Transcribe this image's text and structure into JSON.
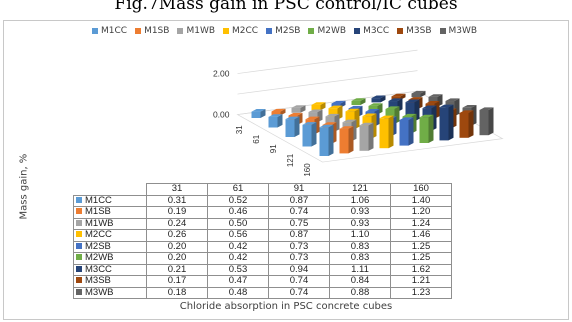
{
  "figure_title": "Fig.7Mass gain in PSC control/IC cubes",
  "chart_data": {
    "type": "bar",
    "subtype": "3d-clustered-bar-with-data-table",
    "categories": [
      "31",
      "61",
      "91",
      "121",
      "160"
    ],
    "series": [
      {
        "name": "M1CC",
        "color": "#5b9bd5",
        "values": [
          0.31,
          0.52,
          0.87,
          1.06,
          1.4
        ]
      },
      {
        "name": "M1SB",
        "color": "#ed7d31",
        "values": [
          0.19,
          0.46,
          0.74,
          0.93,
          1.2
        ]
      },
      {
        "name": "M1WB",
        "color": "#a5a5a5",
        "values": [
          0.24,
          0.5,
          0.75,
          0.93,
          1.24
        ]
      },
      {
        "name": "M2CC",
        "color": "#ffc000",
        "values": [
          0.26,
          0.56,
          0.87,
          1.1,
          1.46
        ]
      },
      {
        "name": "M2SB",
        "color": "#4472c4",
        "values": [
          0.2,
          0.42,
          0.73,
          0.83,
          1.25
        ]
      },
      {
        "name": "M2WB",
        "color": "#70ad47",
        "values": [
          0.2,
          0.42,
          0.73,
          0.83,
          1.25
        ]
      },
      {
        "name": "M3CC",
        "color": "#264478",
        "values": [
          0.21,
          0.53,
          0.94,
          1.11,
          1.62
        ]
      },
      {
        "name": "M3SB",
        "color": "#9e480e",
        "values": [
          0.17,
          0.47,
          0.74,
          0.84,
          1.21
        ]
      },
      {
        "name": "M3WB",
        "color": "#636363",
        "values": [
          0.18,
          0.48,
          0.74,
          0.88,
          1.23
        ]
      }
    ],
    "z_ticks": [
      "0.00",
      "2.00"
    ],
    "ylim": [
      0,
      2
    ],
    "ylabel": "Mass gain, %",
    "xlabel": "Chloride absorption in PSC concrete cubes",
    "legend_position": "top",
    "grid": true
  }
}
